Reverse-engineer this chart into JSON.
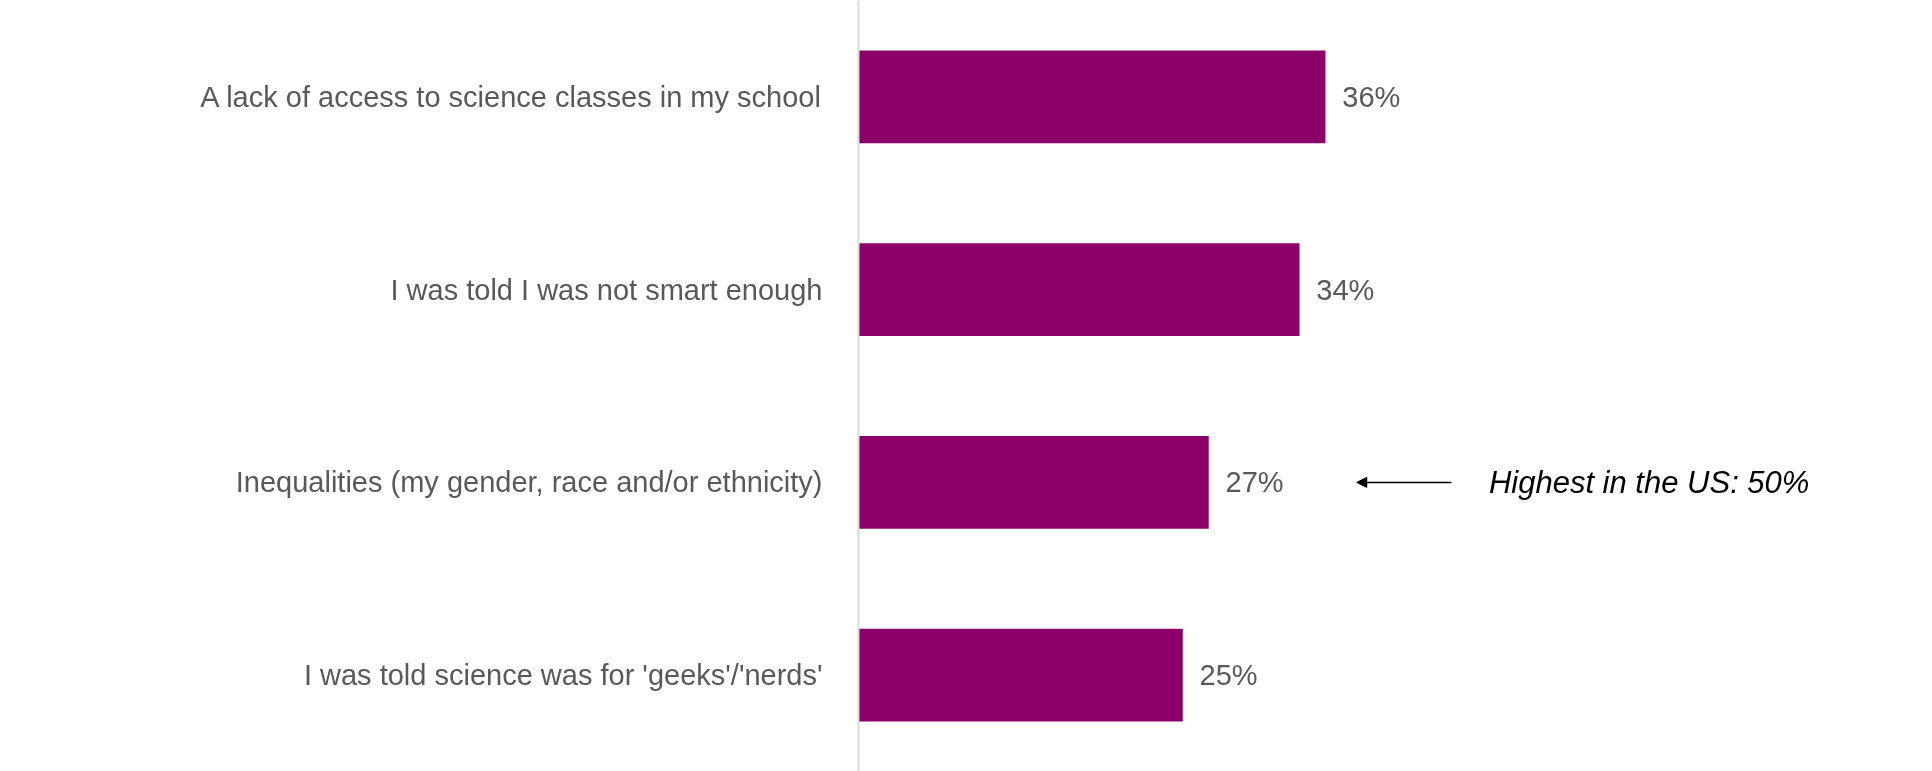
{
  "chart_data": {
    "type": "bar",
    "orientation": "horizontal",
    "categories": [
      "A lack of access to science classes in my school",
      "I was told I was not smart enough",
      "Inequalities (my gender, race and/or ethnicity)",
      "I was told science was for 'geeks'/'nerds'"
    ],
    "values": [
      36,
      34,
      27,
      25
    ],
    "value_labels": [
      "36%",
      "34%",
      "27%",
      "25%"
    ],
    "color": "#8b0068",
    "tick_labels": "y",
    "grid": false,
    "annotations": [
      "Highest in the US: 50%"
    ]
  }
}
